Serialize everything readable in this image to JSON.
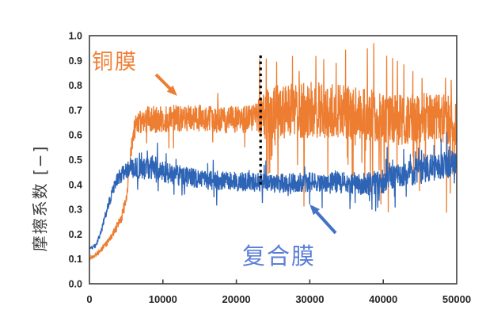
{
  "figure": {
    "background": "#ffffff",
    "axis_color": "#3f3f3f",
    "tick_label_color": "#262626"
  },
  "y_axis": {
    "title": "摩擦系数 [−]",
    "ticks": [
      "0.0",
      "0.1",
      "0.2",
      "0.3",
      "0.4",
      "0.5",
      "0.6",
      "0.7",
      "0.8",
      "0.9",
      "1.0"
    ],
    "min": 0.0,
    "max": 1.0
  },
  "x_axis": {
    "title": "",
    "ticks": [
      "0",
      "10000",
      "20000",
      "30000",
      "40000",
      "50000"
    ],
    "min": 0,
    "max": 50000
  },
  "annotations": {
    "copper": {
      "label": "铜膜",
      "color": "#F08038",
      "arrow_color": "#ED7D31",
      "arrow_direction": "down-right"
    },
    "composite": {
      "label": "复合膜",
      "color": "#5B7ED7",
      "arrow_color": "#4472C4",
      "arrow_direction": "up-left"
    }
  },
  "chart_data": {
    "type": "line",
    "title": "",
    "xlabel": "",
    "ylabel": "摩擦系数 [−]",
    "xlim": [
      0,
      50000
    ],
    "ylim": [
      0.0,
      1.0
    ],
    "grid": false,
    "legend": "none (inline arrow annotations)",
    "vline": {
      "x": 23300,
      "y_range": [
        0.4,
        0.92
      ],
      "style": "dotted",
      "color": "#000000"
    },
    "n_points": 1600,
    "series": [
      {
        "name": "铜膜",
        "color": "#ED7D31",
        "seed": 7,
        "summary": "Copper film: starts ~0.10, slow run-in rise to ~0.30 by x=4700, steep jump to ~0.65 by x=6200, noisy plateau ~0.60–0.75 until x≈23000, then much larger fluctuation band ~0.45–0.95 with spikes near 0.95 and dips to ~0.35, ending ~0.65 at x=50000",
        "mean_envelope": [
          [
            0,
            0.1
          ],
          [
            1200,
            0.125
          ],
          [
            2400,
            0.165
          ],
          [
            3600,
            0.22
          ],
          [
            4400,
            0.27
          ],
          [
            5000,
            0.34
          ],
          [
            5400,
            0.46
          ],
          [
            5800,
            0.58
          ],
          [
            6300,
            0.645
          ],
          [
            7500,
            0.66
          ],
          [
            10000,
            0.665
          ],
          [
            14000,
            0.67
          ],
          [
            18000,
            0.66
          ],
          [
            22000,
            0.665
          ],
          [
            24000,
            0.68
          ],
          [
            27000,
            0.7
          ],
          [
            31000,
            0.7
          ],
          [
            35000,
            0.69
          ],
          [
            39000,
            0.675
          ],
          [
            43000,
            0.66
          ],
          [
            47000,
            0.67
          ],
          [
            50000,
            0.655
          ]
        ],
        "noise_envelope": [
          [
            0,
            0.008
          ],
          [
            2500,
            0.013
          ],
          [
            4200,
            0.02
          ],
          [
            5200,
            0.035
          ],
          [
            6300,
            0.05
          ],
          [
            8000,
            0.055
          ],
          [
            20000,
            0.055
          ],
          [
            22800,
            0.06
          ],
          [
            23600,
            0.105
          ],
          [
            28000,
            0.115
          ],
          [
            34000,
            0.11
          ],
          [
            42000,
            0.105
          ],
          [
            50000,
            0.1
          ]
        ],
        "spike_rules": [
          {
            "from": 6500,
            "to": 23000,
            "up_p": 0.02,
            "up": 0.07,
            "down_p": 0.02,
            "down": 0.1
          },
          {
            "from": 23000,
            "to": 50000,
            "up_p": 0.05,
            "up": 0.22,
            "down_p": 0.045,
            "down": 0.3
          }
        ]
      },
      {
        "name": "复合膜",
        "color": "#2E64B5",
        "seed": 13,
        "summary": "Composite film: starts ~0.14, rises to ~0.45 by x=4000, peaks ~0.47–0.52 around x=6000–9000, settles into stable noisy band ~0.37–0.48 (mean ~0.41) through x≈40000, then gradually climbs to ~0.48–0.55 with spikes near 0.6 by x=50000",
        "mean_envelope": [
          [
            0,
            0.14
          ],
          [
            900,
            0.155
          ],
          [
            1600,
            0.21
          ],
          [
            2100,
            0.27
          ],
          [
            2700,
            0.33
          ],
          [
            3300,
            0.39
          ],
          [
            4000,
            0.43
          ],
          [
            5000,
            0.455
          ],
          [
            6500,
            0.465
          ],
          [
            8500,
            0.47
          ],
          [
            10500,
            0.45
          ],
          [
            12500,
            0.435
          ],
          [
            15000,
            0.42
          ],
          [
            18000,
            0.415
          ],
          [
            22000,
            0.41
          ],
          [
            26000,
            0.405
          ],
          [
            30000,
            0.41
          ],
          [
            34000,
            0.41
          ],
          [
            37500,
            0.4
          ],
          [
            40000,
            0.415
          ],
          [
            43000,
            0.44
          ],
          [
            46000,
            0.465
          ],
          [
            48500,
            0.48
          ],
          [
            50000,
            0.49
          ]
        ],
        "noise_envelope": [
          [
            0,
            0.006
          ],
          [
            1500,
            0.012
          ],
          [
            3000,
            0.022
          ],
          [
            5000,
            0.038
          ],
          [
            8000,
            0.05
          ],
          [
            11000,
            0.045
          ],
          [
            15000,
            0.04
          ],
          [
            25000,
            0.038
          ],
          [
            32000,
            0.042
          ],
          [
            38000,
            0.048
          ],
          [
            43000,
            0.052
          ],
          [
            50000,
            0.058
          ]
        ],
        "spike_rules": [
          {
            "from": 4500,
            "to": 30000,
            "up_p": 0.03,
            "up": 0.08,
            "down_p": 0.025,
            "down": 0.07
          },
          {
            "from": 30000,
            "to": 40000,
            "up_p": 0.025,
            "up": 0.07,
            "down_p": 0.04,
            "down": 0.1
          },
          {
            "from": 40000,
            "to": 50000,
            "up_p": 0.05,
            "up": 0.11,
            "down_p": 0.025,
            "down": 0.08
          }
        ]
      }
    ]
  }
}
